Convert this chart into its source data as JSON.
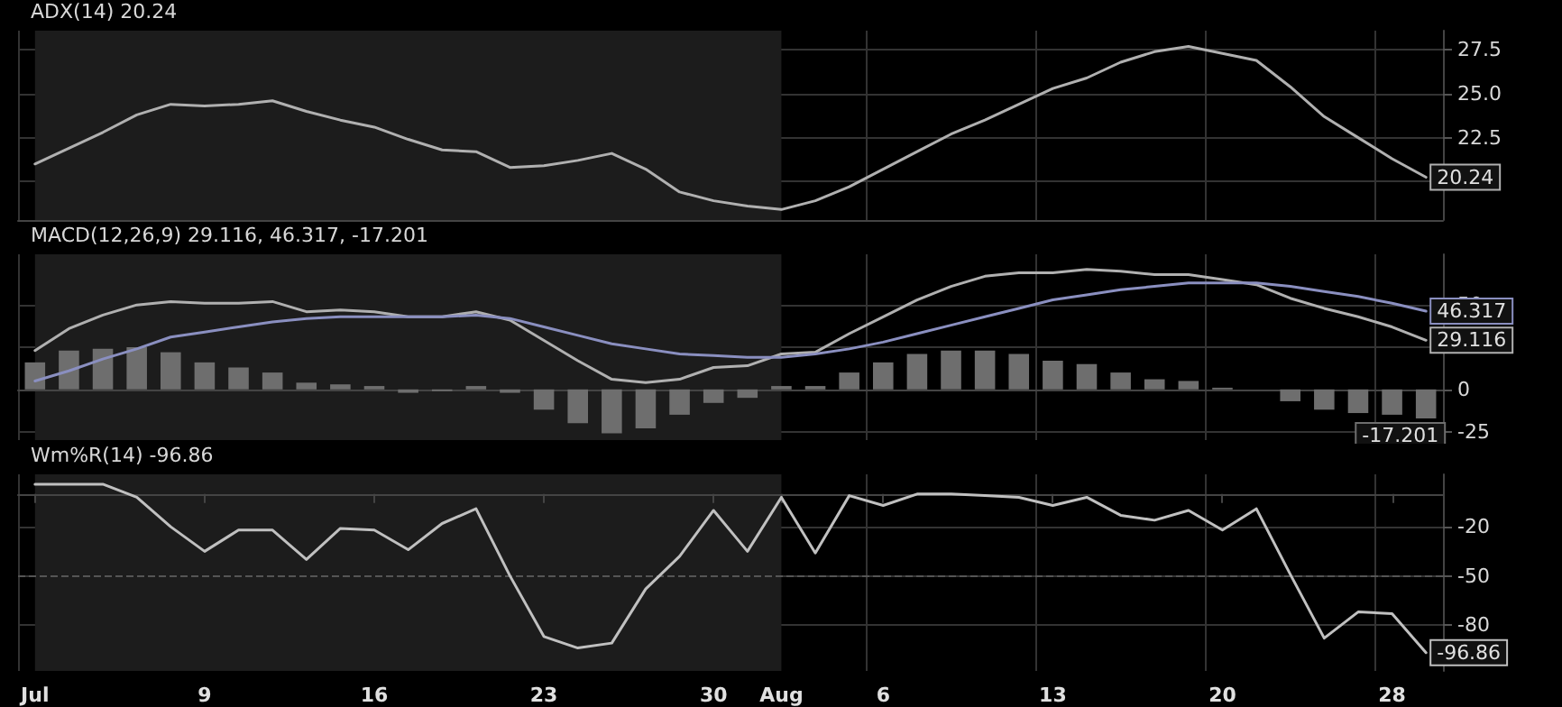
{
  "chart_data": [
    {
      "type": "line",
      "title": "ADX(14) 20.24",
      "categories": [
        "Jul",
        null,
        null,
        null,
        null,
        "9",
        null,
        null,
        null,
        null,
        "16",
        null,
        null,
        null,
        null,
        "23",
        null,
        null,
        null,
        null,
        "30",
        null,
        "Aug",
        null,
        null,
        "6",
        null,
        null,
        null,
        null,
        "13",
        null,
        null,
        null,
        null,
        "20",
        null,
        null,
        null,
        null,
        "28",
        null
      ],
      "series": [
        {
          "color": "#b0b0b0",
          "values": [
            21.0,
            21.9,
            22.8,
            23.8,
            24.4,
            24.3,
            24.4,
            24.6,
            24.0,
            23.5,
            23.1,
            22.4,
            21.8,
            21.7,
            20.8,
            20.9,
            21.2,
            21.6,
            20.7,
            19.4,
            18.9,
            18.6,
            18.4,
            18.9,
            19.7,
            20.7,
            21.7,
            22.7,
            23.5,
            24.4,
            25.3,
            25.9,
            26.8,
            27.4,
            27.7,
            27.3,
            26.9,
            25.4,
            23.7,
            22.5,
            21.3,
            20.24
          ],
          "value_labels": [
            null,
            null,
            null,
            null,
            null,
            null,
            null,
            null,
            null,
            null,
            null,
            null,
            null,
            null,
            null,
            null,
            null,
            null,
            null,
            null,
            null,
            null,
            null,
            null,
            null,
            null,
            null,
            null,
            null,
            null,
            null,
            null,
            null,
            null,
            null,
            null,
            null,
            null,
            null,
            null,
            null,
            "20.24"
          ]
        }
      ],
      "ylim": [
        17.8,
        28.6
      ],
      "yticks": [
        {
          "value": 20,
          "label": null
        },
        {
          "value": 22.5,
          "label": "22.5"
        },
        {
          "value": 25,
          "label": "25.0"
        },
        {
          "value": 27.5,
          "label": "27.5"
        }
      ],
      "grid": true,
      "marker": "none",
      "tick_labels": "y",
      "bands": [
        {
          "axis": "x",
          "from": "Jul",
          "to": "Aug",
          "color": "#1c1c1c"
        }
      ]
    },
    {
      "type": "line",
      "title": "MACD(12,26,9) 29.116, 46.317, -17.201",
      "categories": [
        "Jul",
        null,
        null,
        null,
        null,
        "9",
        null,
        null,
        null,
        null,
        "16",
        null,
        null,
        null,
        null,
        "23",
        null,
        null,
        null,
        null,
        "30",
        null,
        "Aug",
        null,
        null,
        "6",
        null,
        null,
        null,
        null,
        "13",
        null,
        null,
        null,
        null,
        "20",
        null,
        null,
        null,
        null,
        "28",
        null
      ],
      "series": [
        {
          "type": "bar",
          "color": "#6e6e6e",
          "values": [
            16,
            23,
            24,
            25,
            22,
            16,
            13,
            10,
            4,
            3,
            2,
            -2,
            -1,
            2,
            -2,
            -12,
            -20,
            -26,
            -23,
            -15,
            -8,
            -5,
            2,
            2,
            10,
            16,
            21,
            23,
            23,
            21,
            17,
            15,
            10,
            6,
            5,
            1,
            0,
            -7,
            -12,
            -14,
            -15,
            -17.201
          ],
          "value_labels": [
            null,
            null,
            null,
            null,
            null,
            null,
            null,
            null,
            null,
            null,
            null,
            null,
            null,
            null,
            null,
            null,
            null,
            null,
            null,
            null,
            null,
            null,
            null,
            null,
            null,
            null,
            null,
            null,
            null,
            null,
            null,
            null,
            null,
            null,
            null,
            null,
            null,
            null,
            null,
            null,
            null,
            "-17.201"
          ]
        },
        {
          "color": "#b0b0b0",
          "values": [
            23,
            36,
            44,
            50,
            52,
            51,
            51,
            52,
            46,
            47,
            46,
            43,
            43,
            46,
            41,
            29,
            17,
            6,
            4,
            6,
            13,
            14,
            21,
            22,
            33,
            43,
            53,
            61,
            67,
            69,
            69,
            71,
            70,
            68,
            68,
            65,
            62,
            54,
            48,
            43,
            37,
            29.116
          ],
          "value_labels": [
            null,
            null,
            null,
            null,
            null,
            null,
            null,
            null,
            null,
            null,
            null,
            null,
            null,
            null,
            null,
            null,
            null,
            null,
            null,
            null,
            null,
            null,
            null,
            null,
            null,
            null,
            null,
            null,
            null,
            null,
            null,
            null,
            null,
            null,
            null,
            null,
            null,
            null,
            null,
            null,
            null,
            "29.116"
          ]
        },
        {
          "color": "#8a8fc0",
          "values": [
            5,
            11,
            18,
            24,
            31,
            34,
            37,
            40,
            42,
            43,
            43,
            43,
            43,
            44,
            42,
            37,
            32,
            27,
            24,
            21,
            20,
            19,
            19,
            21,
            24,
            28,
            33,
            38,
            43,
            48,
            53,
            56,
            59,
            61,
            63,
            63,
            63,
            61,
            58,
            55,
            51,
            46.317
          ],
          "value_labels": [
            null,
            null,
            null,
            null,
            null,
            null,
            null,
            null,
            null,
            null,
            null,
            null,
            null,
            null,
            null,
            null,
            null,
            null,
            null,
            null,
            null,
            null,
            null,
            null,
            null,
            null,
            null,
            null,
            null,
            null,
            null,
            null,
            null,
            null,
            null,
            null,
            null,
            null,
            null,
            null,
            null,
            "46.317"
          ]
        }
      ],
      "ylim": [
        -30,
        80
      ],
      "yticks": [
        -25,
        0,
        {
          "value": 25,
          "label": null
        },
        50
      ],
      "grid": true,
      "marker": "none",
      "tick_labels": "y",
      "bands": [
        {
          "axis": "x",
          "from": "Jul",
          "to": "Aug",
          "color": "#1c1c1c"
        }
      ]
    },
    {
      "type": "line",
      "title": "Wm%R(14) -96.86",
      "categories": [
        "Jul",
        null,
        null,
        null,
        null,
        "9",
        null,
        null,
        null,
        null,
        "16",
        null,
        null,
        null,
        null,
        "23",
        null,
        null,
        null,
        null,
        "30",
        null,
        "Aug",
        null,
        null,
        "6",
        null,
        null,
        null,
        null,
        "13",
        null,
        null,
        null,
        null,
        "20",
        null,
        null,
        null,
        null,
        "28",
        null
      ],
      "series": [
        {
          "color": "#c0c0c0",
          "values": [
            6,
            6,
            6,
            -2,
            -20,
            -35,
            -22,
            -22,
            -40,
            -21,
            -22,
            -34,
            -18,
            -9,
            -50,
            -87,
            -94,
            -91,
            -58,
            -38,
            -10,
            -35,
            -2,
            -36,
            -1,
            -7,
            0,
            0,
            -1,
            -2,
            -7,
            -2,
            -13,
            -16,
            -10,
            -22,
            -9,
            -49,
            -88,
            -72,
            -73,
            -96.86
          ],
          "value_labels": [
            null,
            null,
            null,
            null,
            null,
            null,
            null,
            null,
            null,
            null,
            null,
            null,
            null,
            null,
            null,
            null,
            null,
            null,
            null,
            null,
            null,
            null,
            null,
            null,
            null,
            null,
            null,
            null,
            null,
            null,
            null,
            null,
            null,
            null,
            null,
            null,
            null,
            null,
            null,
            null,
            null,
            "-96.86"
          ]
        }
      ],
      "ylim": [
        -108,
        12
      ],
      "yticks": [
        -80,
        -50,
        -20
      ],
      "grid": true,
      "marker": "none",
      "ref_lines": [
        {
          "axis": "y",
          "value": -50,
          "line_style": "dashed",
          "color": "#555555"
        }
      ],
      "bands": [
        {
          "axis": "x",
          "from": "Jul",
          "to": "Aug",
          "color": "#1c1c1c"
        }
      ]
    }
  ]
}
